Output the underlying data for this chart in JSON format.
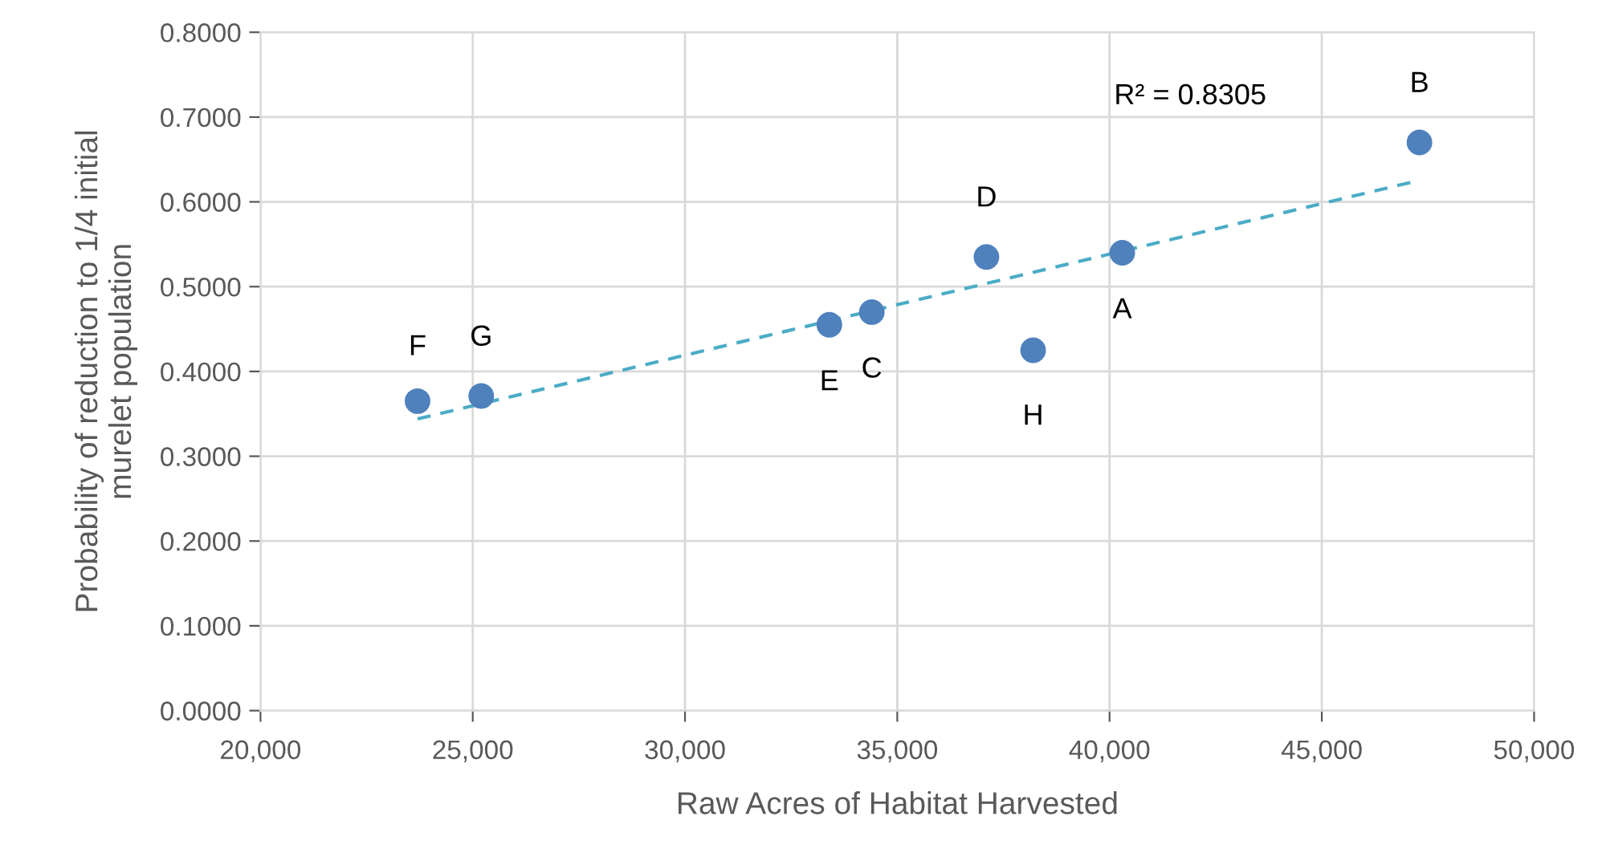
{
  "chart_data": {
    "type": "scatter",
    "xlabel": "Raw Acres of Habitat Harvested",
    "ylabel": "Probability of reduction to 1/4 initial\nmurelet population",
    "series": [
      {
        "color": "#4f81bd",
        "marker": "circle",
        "x": [
          40300,
          47300,
          34400,
          37100,
          33400,
          23700,
          25200,
          38200
        ],
        "values": [
          0.54,
          0.67,
          0.47,
          0.535,
          0.455,
          0.365,
          0.371,
          0.425
        ]
      },
      {
        "type": "line",
        "color": "#4bacc6",
        "line_style": "dashed",
        "marker": "none",
        "x": [
          23700,
          47100
        ],
        "values": [
          0.344,
          0.623
        ]
      }
    ],
    "annotations": [
      {
        "text": "A",
        "x": 40300,
        "y": 0.54
      },
      {
        "text": "B",
        "x": 47300,
        "y": 0.67
      },
      {
        "text": "C",
        "x": 34400,
        "y": 0.47
      },
      {
        "text": "D",
        "x": 37100,
        "y": 0.535
      },
      {
        "text": "E",
        "x": 33400,
        "y": 0.455
      },
      {
        "text": "F",
        "x": 23700,
        "y": 0.365
      },
      {
        "text": "G",
        "x": 25200,
        "y": 0.371
      },
      {
        "text": "H",
        "x": 38200,
        "y": 0.425
      },
      "R² = 0.8305"
    ],
    "xlim": [
      20000,
      50000
    ],
    "xticks": [
      {
        "value": 20000,
        "label": "20,000"
      },
      {
        "value": 25000,
        "label": "25,000"
      },
      {
        "value": 30000,
        "label": "30,000"
      },
      {
        "value": 35000,
        "label": "35,000"
      },
      {
        "value": 40000,
        "label": "40,000"
      },
      {
        "value": 45000,
        "label": "45,000"
      },
      {
        "value": 50000,
        "label": "50,000"
      }
    ],
    "ylim": [
      0,
      0.8
    ],
    "yticks": [
      {
        "value": 0,
        "label": "0.0000"
      },
      {
        "value": 0.1,
        "label": "0.1000"
      },
      {
        "value": 0.2,
        "label": "0.2000"
      },
      {
        "value": 0.3,
        "label": "0.3000"
      },
      {
        "value": 0.4,
        "label": "0.4000"
      },
      {
        "value": 0.5,
        "label": "0.5000"
      },
      {
        "value": 0.6,
        "label": "0.6000"
      },
      {
        "value": 0.7,
        "label": "0.7000"
      },
      {
        "value": 0.8,
        "label": "0.8000"
      }
    ],
    "grid": true,
    "legend": false
  }
}
